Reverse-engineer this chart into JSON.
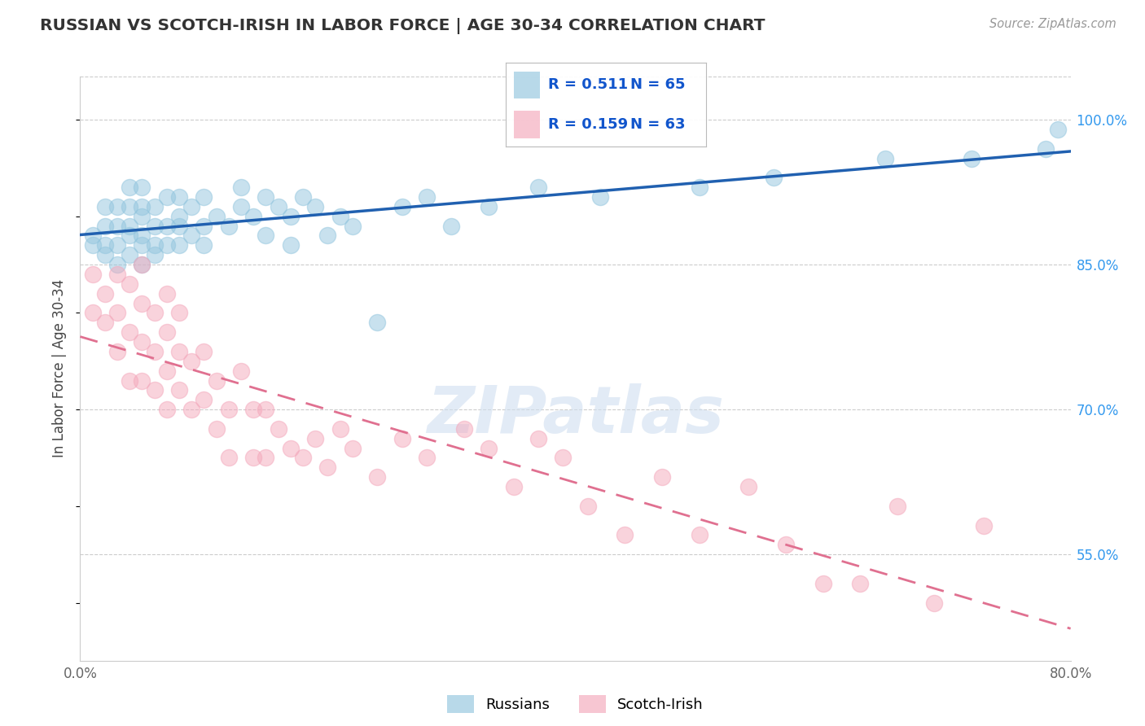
{
  "title": "RUSSIAN VS SCOTCH-IRISH IN LABOR FORCE | AGE 30-34 CORRELATION CHART",
  "source": "Source: ZipAtlas.com",
  "ylabel": "In Labor Force | Age 30-34",
  "x_min": 0.0,
  "x_max": 0.8,
  "y_min": 0.44,
  "y_max": 1.045,
  "y_tick_values": [
    0.55,
    0.7,
    0.85,
    1.0
  ],
  "y_tick_labels": [
    "55.0%",
    "70.0%",
    "85.0%",
    "100.0%"
  ],
  "russian_color": "#92C5DE",
  "scotch_color": "#F4A8BB",
  "russian_line_color": "#2060B0",
  "scotch_line_color": "#E07090",
  "r_russian": 0.511,
  "n_russian": 65,
  "r_scotch": 0.159,
  "n_scotch": 63,
  "russian_x": [
    0.01,
    0.01,
    0.02,
    0.02,
    0.02,
    0.02,
    0.03,
    0.03,
    0.03,
    0.03,
    0.04,
    0.04,
    0.04,
    0.04,
    0.04,
    0.05,
    0.05,
    0.05,
    0.05,
    0.05,
    0.05,
    0.06,
    0.06,
    0.06,
    0.06,
    0.07,
    0.07,
    0.07,
    0.08,
    0.08,
    0.08,
    0.08,
    0.09,
    0.09,
    0.1,
    0.1,
    0.1,
    0.11,
    0.12,
    0.13,
    0.13,
    0.14,
    0.15,
    0.15,
    0.16,
    0.17,
    0.17,
    0.18,
    0.19,
    0.2,
    0.21,
    0.22,
    0.24,
    0.26,
    0.28,
    0.3,
    0.33,
    0.37,
    0.42,
    0.5,
    0.56,
    0.65,
    0.72,
    0.78,
    0.79
  ],
  "russian_y": [
    0.87,
    0.88,
    0.86,
    0.87,
    0.89,
    0.91,
    0.85,
    0.87,
    0.89,
    0.91,
    0.86,
    0.88,
    0.89,
    0.91,
    0.93,
    0.85,
    0.87,
    0.88,
    0.9,
    0.91,
    0.93,
    0.86,
    0.87,
    0.89,
    0.91,
    0.87,
    0.89,
    0.92,
    0.87,
    0.89,
    0.9,
    0.92,
    0.88,
    0.91,
    0.87,
    0.89,
    0.92,
    0.9,
    0.89,
    0.91,
    0.93,
    0.9,
    0.88,
    0.92,
    0.91,
    0.87,
    0.9,
    0.92,
    0.91,
    0.88,
    0.9,
    0.89,
    0.79,
    0.91,
    0.92,
    0.89,
    0.91,
    0.93,
    0.92,
    0.93,
    0.94,
    0.96,
    0.96,
    0.97,
    0.99
  ],
  "scotch_x": [
    0.01,
    0.01,
    0.02,
    0.02,
    0.03,
    0.03,
    0.03,
    0.04,
    0.04,
    0.04,
    0.05,
    0.05,
    0.05,
    0.05,
    0.06,
    0.06,
    0.06,
    0.07,
    0.07,
    0.07,
    0.07,
    0.08,
    0.08,
    0.08,
    0.09,
    0.09,
    0.1,
    0.1,
    0.11,
    0.11,
    0.12,
    0.12,
    0.13,
    0.14,
    0.14,
    0.15,
    0.15,
    0.16,
    0.17,
    0.18,
    0.19,
    0.2,
    0.21,
    0.22,
    0.24,
    0.26,
    0.28,
    0.31,
    0.33,
    0.35,
    0.37,
    0.39,
    0.41,
    0.44,
    0.47,
    0.5,
    0.54,
    0.57,
    0.6,
    0.63,
    0.66,
    0.69,
    0.73
  ],
  "scotch_y": [
    0.8,
    0.84,
    0.79,
    0.82,
    0.76,
    0.8,
    0.84,
    0.73,
    0.78,
    0.83,
    0.73,
    0.77,
    0.81,
    0.85,
    0.72,
    0.76,
    0.8,
    0.7,
    0.74,
    0.78,
    0.82,
    0.72,
    0.76,
    0.8,
    0.7,
    0.75,
    0.71,
    0.76,
    0.68,
    0.73,
    0.65,
    0.7,
    0.74,
    0.65,
    0.7,
    0.65,
    0.7,
    0.68,
    0.66,
    0.65,
    0.67,
    0.64,
    0.68,
    0.66,
    0.63,
    0.67,
    0.65,
    0.68,
    0.66,
    0.62,
    0.67,
    0.65,
    0.6,
    0.57,
    0.63,
    0.57,
    0.62,
    0.56,
    0.52,
    0.52,
    0.6,
    0.5,
    0.58
  ]
}
